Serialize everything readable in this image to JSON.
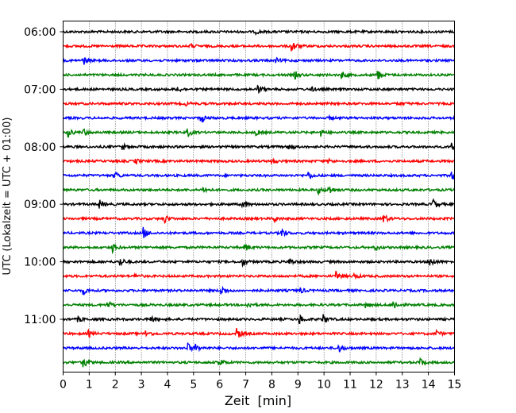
{
  "chart_data": {
    "type": "line",
    "title": "",
    "xlabel": "Zeit  [min]",
    "ylabel": "UTC (Lokalzeit = UTC + 01:00)",
    "xlim": [
      0,
      15
    ],
    "x_ticks": [
      "0",
      "1",
      "2",
      "3",
      "4",
      "5",
      "6",
      "7",
      "8",
      "9",
      "10",
      "11",
      "12",
      "13",
      "14",
      "15"
    ],
    "y_ticks": [
      "06:00",
      "07:00",
      "08:00",
      "09:00",
      "10:00",
      "11:00"
    ],
    "grid": "vertical dotted at each minute",
    "legend": "none",
    "trace_interval_min": 15,
    "trace_colors": [
      "#000000",
      "#ff0000",
      "#0000ff",
      "#008000"
    ],
    "traces": [
      {
        "start": "06:00",
        "events": [
          [
            7.4,
            0.3
          ]
        ]
      },
      {
        "start": "06:15",
        "events": [
          [
            4.9,
            0.3
          ],
          [
            8.8,
            1.0
          ]
        ]
      },
      {
        "start": "06:30",
        "events": [
          [
            0.8,
            0.7
          ],
          [
            8.2,
            0.3
          ]
        ]
      },
      {
        "start": "06:45",
        "events": [
          [
            8.9,
            0.6
          ],
          [
            10.7,
            0.6
          ],
          [
            12.1,
            0.8
          ]
        ]
      },
      {
        "start": "07:00",
        "events": [
          [
            4.4,
            0.5
          ],
          [
            7.5,
            0.6
          ],
          [
            9.5,
            0.4
          ]
        ]
      },
      {
        "start": "07:15",
        "events": [
          [
            4.7,
            0.3
          ],
          [
            12.9,
            0.3
          ]
        ]
      },
      {
        "start": "07:30",
        "events": [
          [
            5.3,
            0.8
          ],
          [
            10.2,
            0.3
          ]
        ]
      },
      {
        "start": "07:45",
        "events": [
          [
            0.2,
            0.8
          ],
          [
            0.8,
            0.5
          ],
          [
            4.8,
            0.7
          ],
          [
            7.4,
            0.5
          ],
          [
            9.9,
            0.6
          ]
        ]
      },
      {
        "start": "08:00",
        "events": [
          [
            2.3,
            0.5
          ],
          [
            8.7,
            0.6
          ],
          [
            14.9,
            1.0
          ]
        ]
      },
      {
        "start": "08:15",
        "events": [
          [
            2.8,
            0.4
          ],
          [
            8.0,
            0.4
          ],
          [
            10.2,
            0.3
          ]
        ]
      },
      {
        "start": "08:30",
        "events": [
          [
            2.0,
            0.7
          ],
          [
            9.4,
            0.7
          ],
          [
            14.9,
            0.9
          ]
        ]
      },
      {
        "start": "08:45",
        "events": [
          [
            5.4,
            0.5
          ],
          [
            9.8,
            0.6
          ],
          [
            10.2,
            0.8
          ]
        ]
      },
      {
        "start": "09:00",
        "events": [
          [
            1.4,
            0.8
          ],
          [
            6.9,
            0.8
          ],
          [
            14.2,
            0.9
          ]
        ]
      },
      {
        "start": "09:15",
        "events": [
          [
            3.9,
            0.8
          ],
          [
            8.1,
            0.5
          ],
          [
            12.3,
            0.8
          ]
        ]
      },
      {
        "start": "09:30",
        "events": [
          [
            3.1,
            1.0
          ],
          [
            8.4,
            0.8
          ]
        ]
      },
      {
        "start": "09:45",
        "events": [
          [
            1.9,
            0.9
          ],
          [
            7.0,
            0.7
          ],
          [
            12.0,
            0.4
          ]
        ]
      },
      {
        "start": "10:00",
        "events": [
          [
            2.2,
            0.8
          ],
          [
            6.9,
            0.6
          ],
          [
            8.7,
            0.6
          ],
          [
            14.1,
            0.8
          ]
        ]
      },
      {
        "start": "10:15",
        "events": [
          [
            2.8,
            0.3
          ],
          [
            10.5,
            0.8
          ],
          [
            11.2,
            0.4
          ]
        ]
      },
      {
        "start": "10:30",
        "events": [
          [
            0.8,
            0.6
          ],
          [
            6.1,
            0.7
          ],
          [
            9.1,
            0.5
          ]
        ]
      },
      {
        "start": "10:45",
        "events": [
          [
            1.7,
            0.8
          ],
          [
            7.1,
            0.5
          ],
          [
            11.6,
            0.5
          ],
          [
            12.7,
            0.8
          ]
        ]
      },
      {
        "start": "11:00",
        "events": [
          [
            0.6,
            0.5
          ],
          [
            3.4,
            0.6
          ],
          [
            9.1,
            0.7
          ],
          [
            10.0,
            0.8
          ]
        ]
      },
      {
        "start": "11:15",
        "events": [
          [
            1.0,
            0.5
          ],
          [
            3.2,
            0.6
          ],
          [
            6.7,
            1.0
          ],
          [
            14.3,
            0.6
          ]
        ]
      },
      {
        "start": "11:30",
        "events": [
          [
            4.8,
            0.8
          ],
          [
            5.1,
            0.6
          ],
          [
            10.6,
            0.7
          ]
        ]
      },
      {
        "start": "11:45",
        "events": [
          [
            0.8,
            0.9
          ],
          [
            6.0,
            0.7
          ],
          [
            13.7,
            0.8
          ]
        ]
      }
    ]
  }
}
